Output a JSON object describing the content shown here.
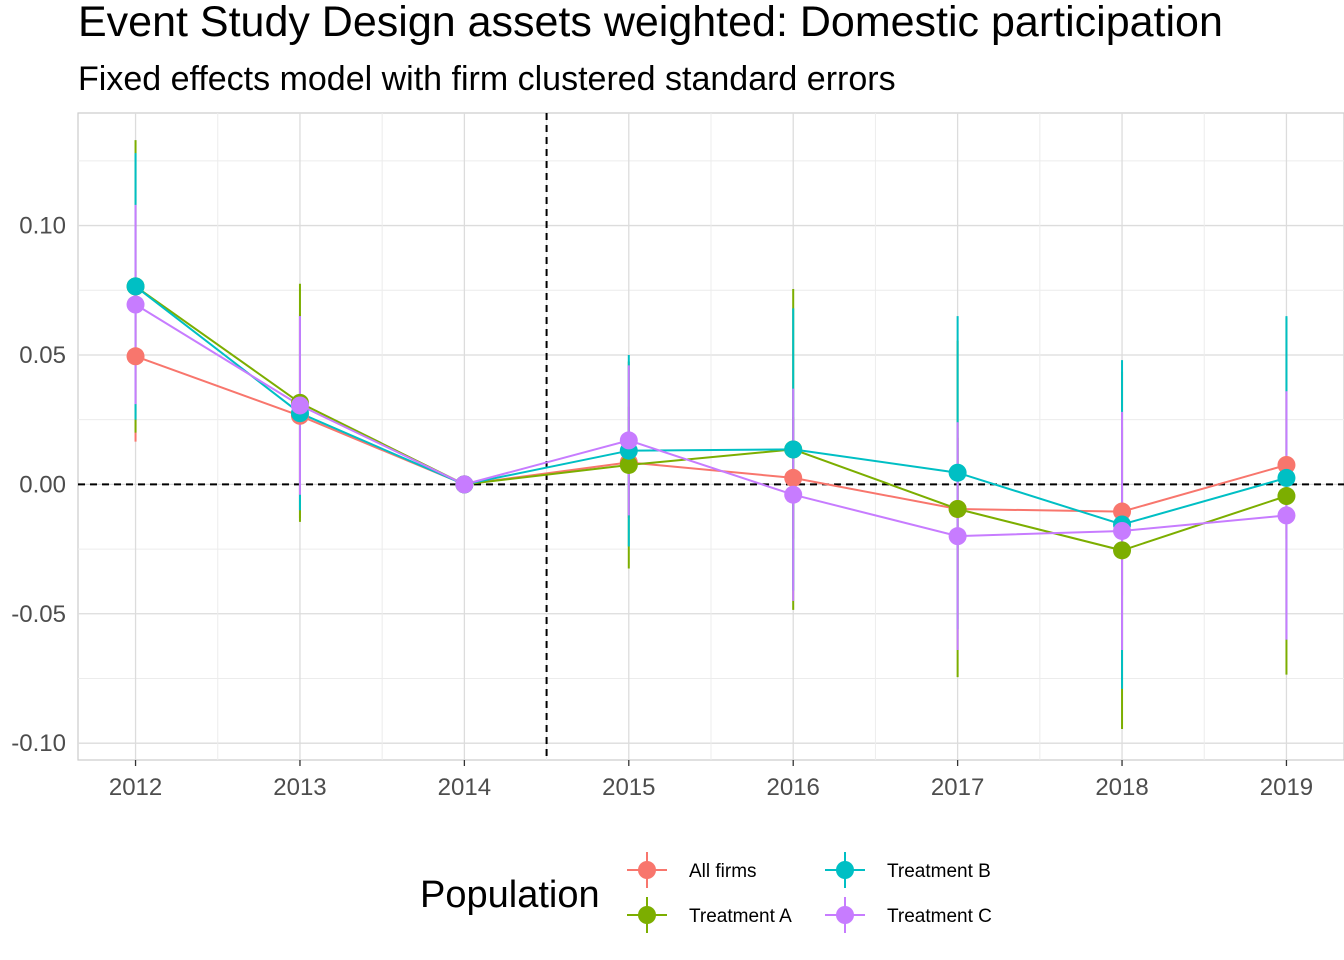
{
  "chart_data": {
    "type": "line",
    "title": "Event Study Design assets weighted: Domestic participation",
    "subtitle": "Fixed effects model with firm clustered standard errors",
    "xlabel": "",
    "ylabel": "",
    "x": [
      2012,
      2013,
      2014,
      2015,
      2016,
      2017,
      2018,
      2019
    ],
    "xlim": [
      2011.65,
      2019.35
    ],
    "ylim": [
      -0.1065,
      0.1435
    ],
    "yticks": [
      -0.1,
      -0.05,
      0.0,
      0.05,
      0.1
    ],
    "ytick_labels": [
      "-0.10",
      "-0.05",
      "0.00",
      "0.05",
      "0.10"
    ],
    "xtick_labels": [
      "2012",
      "2013",
      "2014",
      "2015",
      "2016",
      "2017",
      "2018",
      "2019"
    ],
    "grid": true,
    "reference_lines": {
      "horizontal": 0.0,
      "vertical": 2014.5,
      "style": "dashed"
    },
    "legend": {
      "title": "Population",
      "position": "bottom"
    },
    "series": [
      {
        "name": "All firms",
        "color": "#F8766D",
        "values": [
          0.0495,
          0.0265,
          0.0,
          0.0085,
          0.0025,
          -0.0095,
          -0.0105,
          0.0075
        ],
        "lower": [
          0.0165,
          -0.013,
          0.0,
          -0.013,
          -0.021,
          -0.037,
          -0.043,
          -0.021
        ],
        "upper": [
          0.0825,
          0.066,
          0.0,
          0.03,
          0.026,
          0.018,
          0.022,
          0.036
        ]
      },
      {
        "name": "Treatment A",
        "color": "#7CAE00",
        "values": [
          0.0765,
          0.0315,
          0.0,
          0.0075,
          0.0135,
          -0.0095,
          -0.0255,
          -0.0045
        ],
        "lower": [
          0.02,
          -0.0145,
          0.0,
          -0.0325,
          -0.0485,
          -0.0745,
          -0.0945,
          -0.0735
        ],
        "upper": [
          0.133,
          0.0775,
          0.0,
          0.0475,
          0.0755,
          0.0555,
          0.0435,
          0.0645
        ]
      },
      {
        "name": "Treatment B",
        "color": "#00BFC4",
        "values": [
          0.0765,
          0.0275,
          0.0,
          0.013,
          0.0135,
          0.0045,
          -0.0155,
          0.0025
        ],
        "lower": [
          0.025,
          -0.01,
          0.0,
          -0.024,
          -0.041,
          -0.056,
          -0.079,
          -0.06
        ],
        "upper": [
          0.128,
          0.065,
          0.0,
          0.05,
          0.068,
          0.065,
          0.048,
          0.065
        ]
      },
      {
        "name": "Treatment C",
        "color": "#C77CFF",
        "values": [
          0.0695,
          0.0305,
          0.0,
          0.017,
          -0.004,
          -0.02,
          -0.018,
          -0.012
        ],
        "lower": [
          0.031,
          -0.004,
          0.0,
          -0.012,
          -0.045,
          -0.064,
          -0.064,
          -0.06
        ],
        "upper": [
          0.108,
          0.065,
          0.0,
          0.046,
          0.037,
          0.024,
          0.028,
          0.036
        ]
      }
    ]
  }
}
